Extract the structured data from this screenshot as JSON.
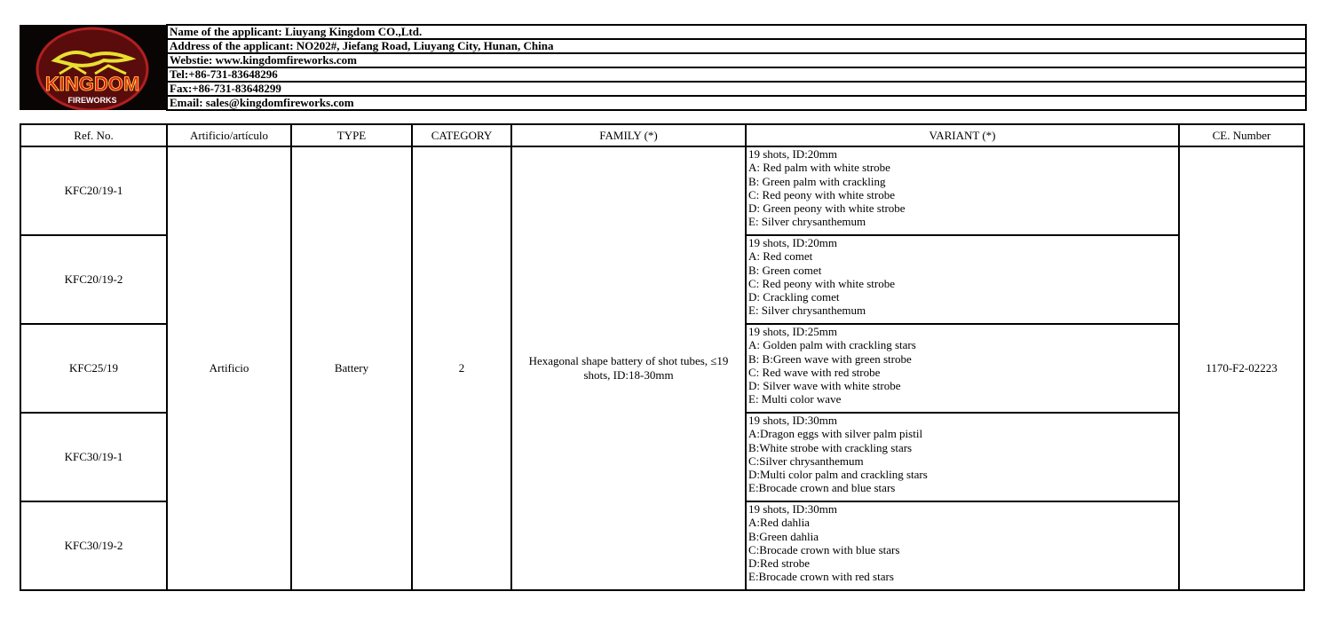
{
  "header": {
    "logo_text": "KINGDOM",
    "logo_sub": "FIREWORKS",
    "lines": [
      "Name of the applicant: Liuyang Kingdom CO.,Ltd.",
      "Address of the applicant: NO202#, Jiefang Road, Liuyang City, Hunan, China",
      "Webstie: www.kingdomfireworks.com",
      "Tel:+86-731-83648296",
      "Fax:+86-731-83648299",
      "Email: sales@kingdomfireworks.com"
    ]
  },
  "table": {
    "columns": [
      "Ref. No.",
      "Artificio/artículo",
      "TYPE",
      "CATEGORY",
      "FAMILY (*)",
      "VARIANT (*)",
      "CE. Number"
    ],
    "artificio": "Artificio",
    "type": "Battery",
    "category": "2",
    "family": "Hexagonal shape battery of shot tubes, ≤19 shots, ID:18-30mm",
    "ce_number": "1170-F2-02223",
    "rows": [
      {
        "ref": "KFC20/19-1",
        "variant": [
          "19 shots, ID:20mm",
          "A: Red palm with white strobe",
          "B: Green palm with crackling",
          "C: Red peony with white strobe",
          "D: Green peony with white strobe",
          "E: Silver chrysanthemum"
        ]
      },
      {
        "ref": "KFC20/19-2",
        "variant": [
          "19 shots, ID:20mm",
          "A: Red comet",
          "B: Green comet",
          "C: Red peony with white strobe",
          "D: Crackling comet",
          "E: Silver chrysanthemum"
        ]
      },
      {
        "ref": "KFC25/19",
        "variant": [
          "19 shots, ID:25mm",
          "A: Golden palm with crackling stars",
          "B: B:Green wave with green strobe",
          "C: Red wave with red strobe",
          "D: Silver wave with white strobe",
          "E: Multi color wave"
        ]
      },
      {
        "ref": "KFC30/19-1",
        "variant": [
          "19 shots, ID:30mm",
          "A:Dragon eggs with silver palm pistil",
          "B:White strobe with crackling stars",
          "C:Silver chrysanthemum",
          "D:Multi color palm and crackling stars",
          "E:Brocade crown and blue stars"
        ]
      },
      {
        "ref": "KFC30/19-2",
        "variant": [
          "19 shots, ID:30mm",
          "A:Red dahlia",
          "B:Green dahlia",
          "C:Brocade crown with blue stars",
          "D:Red strobe",
          "E:Brocade crown with red stars"
        ]
      }
    ]
  }
}
